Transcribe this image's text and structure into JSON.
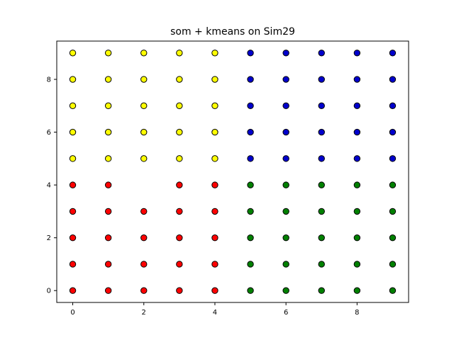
{
  "chart_data": {
    "type": "scatter",
    "title": "som + kmeans on Sim29",
    "xlabel": "",
    "ylabel": "",
    "xlim": [
      -0.45,
      9.45
    ],
    "ylim": [
      -0.45,
      9.45
    ],
    "xticks": [
      0,
      2,
      4,
      6,
      8
    ],
    "yticks": [
      0,
      2,
      4,
      6,
      8
    ],
    "grid": false,
    "marker_edge_color": "#000000",
    "series": [
      {
        "color": "#ff0000",
        "points": [
          [
            0,
            0
          ],
          [
            0,
            1
          ],
          [
            0,
            2
          ],
          [
            0,
            3
          ],
          [
            0,
            4
          ],
          [
            1,
            0
          ],
          [
            1,
            1
          ],
          [
            1,
            2
          ],
          [
            1,
            3
          ],
          [
            1,
            4
          ],
          [
            2,
            0
          ],
          [
            2,
            1
          ],
          [
            2,
            2
          ],
          [
            2,
            3
          ],
          [
            3,
            0
          ],
          [
            3,
            1
          ],
          [
            3,
            2
          ],
          [
            3,
            3
          ],
          [
            3,
            4
          ],
          [
            4,
            0
          ],
          [
            4,
            1
          ],
          [
            4,
            2
          ],
          [
            4,
            3
          ],
          [
            4,
            4
          ]
        ]
      },
      {
        "color": "#ffff00",
        "points": [
          [
            0,
            5
          ],
          [
            0,
            6
          ],
          [
            0,
            7
          ],
          [
            0,
            8
          ],
          [
            0,
            9
          ],
          [
            1,
            5
          ],
          [
            1,
            6
          ],
          [
            1,
            7
          ],
          [
            1,
            8
          ],
          [
            1,
            9
          ],
          [
            2,
            5
          ],
          [
            2,
            6
          ],
          [
            2,
            7
          ],
          [
            2,
            8
          ],
          [
            2,
            9
          ],
          [
            3,
            5
          ],
          [
            3,
            6
          ],
          [
            3,
            7
          ],
          [
            3,
            8
          ],
          [
            3,
            9
          ],
          [
            4,
            5
          ],
          [
            4,
            6
          ],
          [
            4,
            7
          ],
          [
            4,
            8
          ],
          [
            4,
            9
          ]
        ]
      },
      {
        "color": "#008000",
        "points": [
          [
            5,
            0
          ],
          [
            5,
            1
          ],
          [
            5,
            2
          ],
          [
            5,
            3
          ],
          [
            5,
            4
          ],
          [
            6,
            0
          ],
          [
            6,
            1
          ],
          [
            6,
            2
          ],
          [
            6,
            3
          ],
          [
            6,
            4
          ],
          [
            7,
            0
          ],
          [
            7,
            1
          ],
          [
            7,
            2
          ],
          [
            7,
            3
          ],
          [
            7,
            4
          ],
          [
            8,
            0
          ],
          [
            8,
            1
          ],
          [
            8,
            2
          ],
          [
            8,
            3
          ],
          [
            8,
            4
          ],
          [
            9,
            0
          ],
          [
            9,
            1
          ],
          [
            9,
            2
          ],
          [
            9,
            3
          ],
          [
            9,
            4
          ]
        ]
      },
      {
        "color": "#0000cc",
        "points": [
          [
            5,
            5
          ],
          [
            5,
            6
          ],
          [
            5,
            7
          ],
          [
            5,
            8
          ],
          [
            5,
            9
          ],
          [
            6,
            5
          ],
          [
            6,
            6
          ],
          [
            6,
            7
          ],
          [
            6,
            8
          ],
          [
            6,
            9
          ],
          [
            7,
            5
          ],
          [
            7,
            6
          ],
          [
            7,
            7
          ],
          [
            7,
            8
          ],
          [
            7,
            9
          ],
          [
            8,
            5
          ],
          [
            8,
            6
          ],
          [
            8,
            7
          ],
          [
            8,
            8
          ],
          [
            8,
            9
          ],
          [
            9,
            5
          ],
          [
            9,
            6
          ],
          [
            9,
            7
          ],
          [
            9,
            8
          ],
          [
            9,
            9
          ]
        ]
      }
    ]
  }
}
